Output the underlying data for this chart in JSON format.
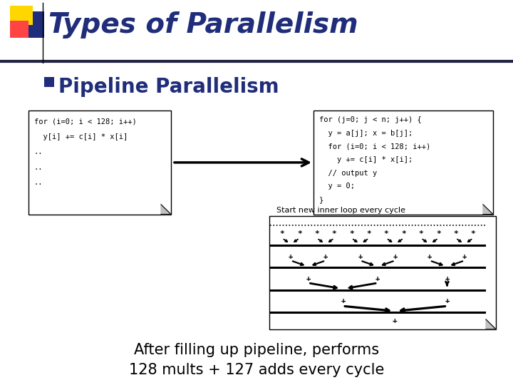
{
  "title": "Types of Parallelism",
  "title_color": "#1F2D7B",
  "bg_color": "#FFFFFF",
  "bullet_text": "Pipeline Parallelism",
  "bullet_color": "#1F2D7B",
  "bullet_square_color": "#1F2D7B",
  "code_box1_lines": [
    "for (i=0; i < 128; i++)",
    "  y[i] += c[i] * x[i]",
    "..",
    "..",
    ".."
  ],
  "code_box2_lines": [
    "for (j=0; j < n; j++) {",
    "  y = a[j]; x = b[j];",
    "  for (i=0; i < 128; i++)",
    "    y += c[i] * x[i];",
    "  // output y",
    "  y = 0;",
    "}"
  ],
  "start_label": "Start new inner loop every cycle",
  "bottom_text1": "After filling up pipeline, performs",
  "bottom_text2": "128 mults + 127 adds every cycle",
  "header_line_color": "#1F2D7B"
}
